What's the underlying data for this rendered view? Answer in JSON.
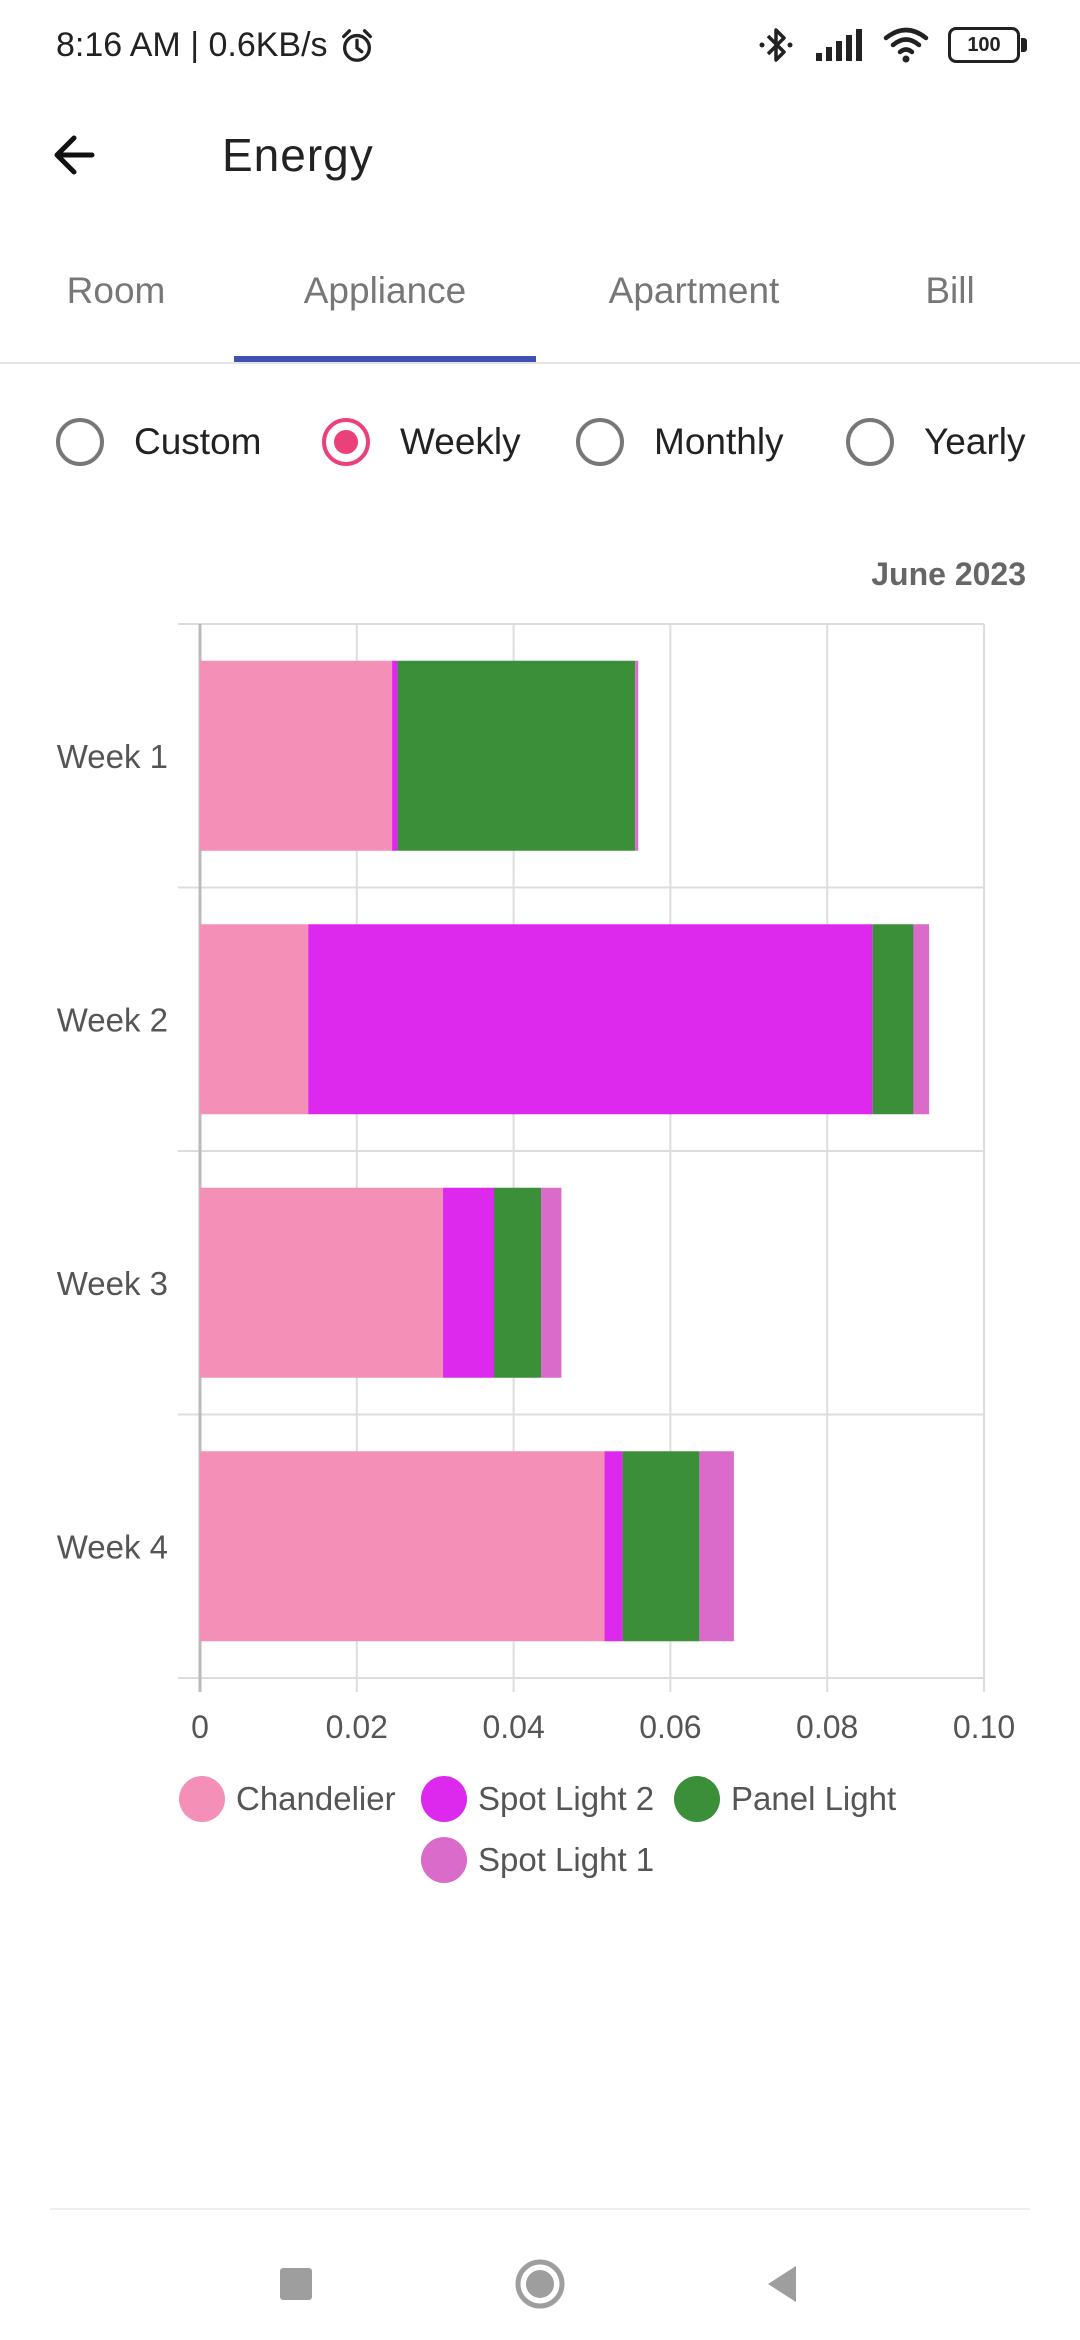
{
  "status_bar": {
    "time_speed": "8:16 AM | 0.6KB/s",
    "battery": "100",
    "icons": [
      "alarm-icon",
      "bluetooth-icon",
      "signal-icon",
      "wifi-icon",
      "battery-icon"
    ]
  },
  "app_bar": {
    "title": "Energy",
    "back_icon": "arrow-left-icon"
  },
  "tabs": [
    {
      "label": "Room",
      "active": false
    },
    {
      "label": "Appliance",
      "active": true
    },
    {
      "label": "Apartment",
      "active": false
    },
    {
      "label": "Bill",
      "active": false
    }
  ],
  "period_options": [
    {
      "label": "Custom",
      "selected": false
    },
    {
      "label": "Weekly",
      "selected": true
    },
    {
      "label": "Monthly",
      "selected": false
    },
    {
      "label": "Yearly",
      "selected": false
    }
  ],
  "period_label": "June 2023",
  "colors": {
    "accent": "#ec407a",
    "tab_indicator": "#3f51b5"
  },
  "chart_data": {
    "type": "bar",
    "orientation": "horizontal",
    "stacked": true,
    "categories": [
      "Week 1",
      "Week 2",
      "Week 3",
      "Week 4"
    ],
    "series": [
      {
        "name": "Chandelier",
        "color": "#f48fb8",
        "values": [
          0.0245,
          0.0138,
          0.031,
          0.0516
        ]
      },
      {
        "name": "Spot Light 2",
        "color": "#dd29ed",
        "values": [
          0.0007,
          0.072,
          0.0065,
          0.0023
        ]
      },
      {
        "name": "Panel Light",
        "color": "#3a8f38",
        "values": [
          0.0303,
          0.0052,
          0.006,
          0.0098
        ]
      },
      {
        "name": "Spot Light 1",
        "color": "#db6bcb",
        "values": [
          0.0004,
          0.002,
          0.0026,
          0.0044
        ]
      }
    ],
    "xlim": [
      0,
      0.1
    ],
    "x_ticks": [
      "0",
      "0.02",
      "0.04",
      "0.06",
      "0.08",
      "0.10"
    ],
    "grid": true,
    "legend_position": "bottom"
  }
}
